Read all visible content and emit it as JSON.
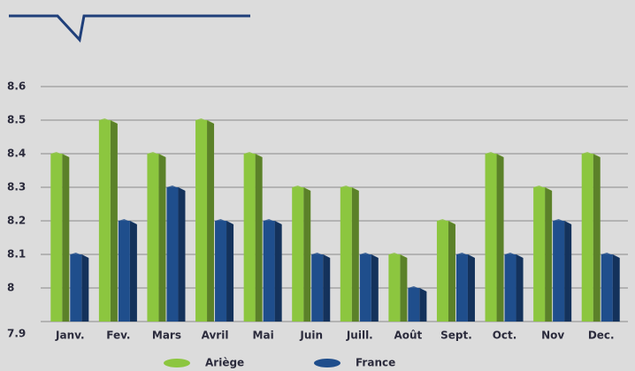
{
  "chart_data": {
    "type": "bar",
    "categories": [
      "Janv.",
      "Fev.",
      "Mars",
      "Avril",
      "Mai",
      "Juin",
      "Juill.",
      "Août",
      "Sept.",
      "Oct.",
      "Nov",
      "Dec."
    ],
    "series": [
      {
        "name": "Ariège",
        "color": "#8cc63f",
        "values": [
          8.4,
          8.5,
          8.4,
          8.5,
          8.4,
          8.3,
          8.3,
          8.1,
          8.2,
          8.4,
          8.3,
          8.4
        ]
      },
      {
        "name": "France",
        "color": "#1f4e8c",
        "values": [
          8.1,
          8.2,
          8.3,
          8.2,
          8.2,
          8.1,
          8.1,
          8.0,
          8.1,
          8.1,
          8.2,
          8.1
        ]
      }
    ],
    "ylim": [
      7.9,
      8.6
    ],
    "yticks": [
      7.9,
      8,
      8.1,
      8.2,
      8.3,
      8.4,
      8.5,
      8.6
    ],
    "grid": true,
    "legend": "bottom"
  }
}
